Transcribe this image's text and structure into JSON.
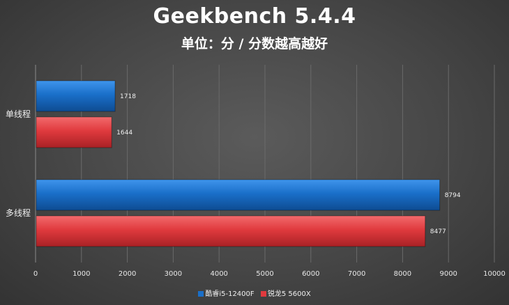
{
  "chart_data": {
    "type": "bar",
    "orientation": "horizontal",
    "title": "Geekbench 5.4.4",
    "subtitle": "单位：分 / 分数越高越好",
    "categories": [
      "单线程",
      "多线程"
    ],
    "series": [
      {
        "name": "酷睿i5-12400F",
        "color": "#1a6fc9",
        "values": [
          1718,
          8794
        ]
      },
      {
        "name": "锐龙5 5600X",
        "color": "#e03a3e",
        "values": [
          1644,
          8477
        ]
      }
    ],
    "xlim": [
      0,
      10000
    ],
    "xticks": [
      0,
      1000,
      2000,
      3000,
      4000,
      5000,
      6000,
      7000,
      8000,
      9000,
      10000
    ],
    "grid": true,
    "legend_position": "bottom"
  },
  "colors": {
    "background": "#464646",
    "grid": "#6a6a6a",
    "text": "#ffffff"
  }
}
